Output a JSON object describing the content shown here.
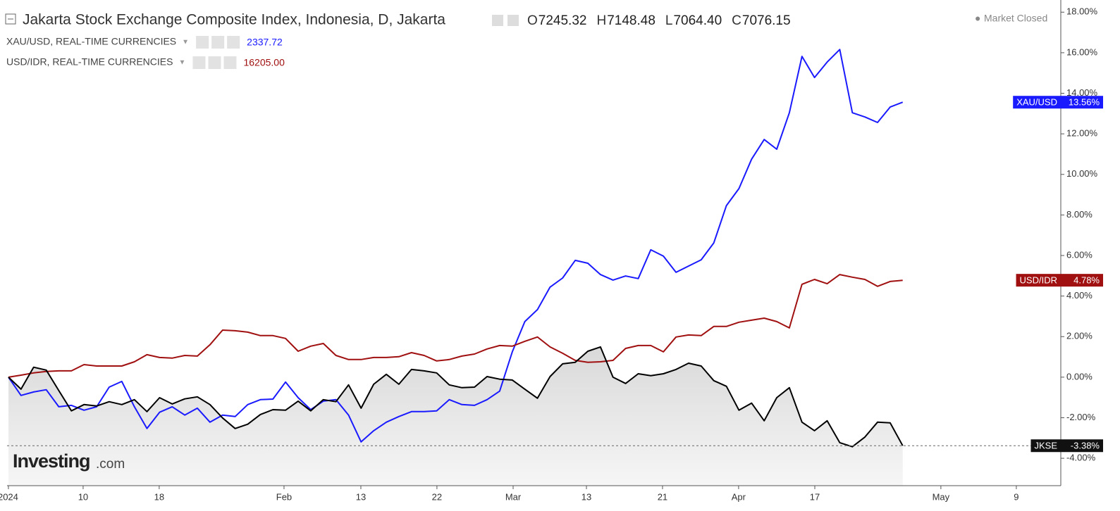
{
  "chart_data": {
    "type": "line",
    "title": "Jakarta Stock Exchange Composite Index, Indonesia, D, Jakarta",
    "ohlc": [
      {
        "label": "O",
        "value": "7245.32"
      },
      {
        "label": "H",
        "value": "7148.48"
      },
      {
        "label": "L",
        "value": "7064.40"
      },
      {
        "label": "C",
        "value": "7076.15"
      }
    ],
    "status": "Market Closed",
    "legend_rows": [
      {
        "name": "XAU/USD, REAL-TIME CURRENCIES",
        "value": "2337.72",
        "color": "#1a1aff"
      },
      {
        "name": "USD/IDR, REAL-TIME CURRENCIES",
        "value": "16205.00",
        "color": "#a01010"
      }
    ],
    "watermark": {
      "brand": "Investing",
      "suffix": ".com"
    },
    "xlim": [
      -0.11,
      83.55
    ],
    "xticks": [
      {
        "value": 0,
        "label": "2024"
      },
      {
        "value": 5.93,
        "label": "10"
      },
      {
        "value": 11.97,
        "label": "18"
      },
      {
        "value": 21.88,
        "label": "Feb"
      },
      {
        "value": 27.98,
        "label": "13"
      },
      {
        "value": 34.02,
        "label": "22"
      },
      {
        "value": 40.07,
        "label": "Mar"
      },
      {
        "value": 45.89,
        "label": "13"
      },
      {
        "value": 51.93,
        "label": "21"
      },
      {
        "value": 57.97,
        "label": "Apr"
      },
      {
        "value": 64.02,
        "label": "17"
      },
      {
        "value": 74.03,
        "label": "May"
      },
      {
        "value": 80.02,
        "label": "9"
      }
    ],
    "ylim": [
      -5.35,
      18.6
    ],
    "yticks": [
      {
        "value": 18,
        "label": "18.00%"
      },
      {
        "value": 16,
        "label": "16.00%"
      },
      {
        "value": 14,
        "label": "14.00%"
      },
      {
        "value": 12,
        "label": "12.00%"
      },
      {
        "value": 10,
        "label": "10.00%"
      },
      {
        "value": 8,
        "label": "8.00%"
      },
      {
        "value": 6,
        "label": "6.00%"
      },
      {
        "value": 4,
        "label": "4.00%"
      },
      {
        "value": 2,
        "label": "2.00%"
      },
      {
        "value": 0,
        "label": "0.00%"
      },
      {
        "value": -2,
        "label": "-2.00%"
      },
      {
        "value": -4,
        "label": "-4.00%"
      }
    ],
    "series": [
      {
        "name": "XAU/USD",
        "color": "#1a1aff",
        "end_label": "13.56%",
        "values": [
          0,
          -0.9,
          -0.73,
          -0.62,
          -1.46,
          -1.39,
          -1.63,
          -1.46,
          -0.49,
          -0.21,
          -1.46,
          -2.53,
          -1.73,
          -1.46,
          -1.87,
          -1.53,
          -2.22,
          -1.87,
          -1.94,
          -1.35,
          -1.11,
          -1.08,
          -0.24,
          -1.01,
          -1.6,
          -1.18,
          -1.11,
          -1.87,
          -3.19,
          -2.64,
          -2.22,
          -1.94,
          -1.7,
          -1.7,
          -1.66,
          -1.11,
          -1.35,
          -1.39,
          -1.11,
          -0.69,
          1.25,
          2.74,
          3.33,
          4.44,
          4.89,
          5.76,
          5.62,
          5.06,
          4.79,
          4.99,
          4.86,
          6.28,
          5.97,
          5.17,
          5.48,
          5.79,
          6.62,
          8.46,
          9.3,
          10.75,
          11.72,
          11.24,
          13.04,
          15.82,
          14.78,
          15.54,
          16.16,
          13.04,
          12.83,
          12.56,
          13.32,
          13.56
        ]
      },
      {
        "name": "USD/IDR",
        "color": "#a01010",
        "end_label": "4.78%",
        "values": [
          0,
          0.1,
          0.21,
          0.28,
          0.31,
          0.31,
          0.62,
          0.55,
          0.55,
          0.55,
          0.76,
          1.11,
          0.97,
          0.94,
          1.07,
          1.04,
          1.6,
          2.32,
          2.29,
          2.22,
          2.05,
          2.05,
          1.91,
          1.28,
          1.53,
          1.66,
          1.07,
          0.87,
          0.87,
          0.97,
          0.97,
          1.01,
          1.21,
          1.07,
          0.8,
          0.87,
          1.04,
          1.14,
          1.39,
          1.56,
          1.53,
          1.77,
          1.98,
          1.49,
          1.18,
          0.83,
          0.73,
          0.76,
          0.83,
          1.42,
          1.56,
          1.56,
          1.25,
          1.98,
          2.08,
          2.05,
          2.5,
          2.5,
          2.71,
          2.81,
          2.91,
          2.74,
          2.43,
          4.58,
          4.82,
          4.61,
          5.06,
          4.93,
          4.82,
          4.48,
          4.72,
          4.78
        ]
      },
      {
        "name": "JKSE",
        "color": "#000000",
        "end_label": "-3.38%",
        "area": true,
        "values": [
          0,
          -0.59,
          0.49,
          0.35,
          -0.66,
          -1.66,
          -1.35,
          -1.42,
          -1.21,
          -1.35,
          -1.11,
          -1.7,
          -1.01,
          -1.32,
          -1.07,
          -0.97,
          -1.35,
          -2.01,
          -2.53,
          -2.32,
          -1.84,
          -1.6,
          -1.63,
          -1.18,
          -1.66,
          -1.11,
          -1.21,
          -0.38,
          -1.53,
          -0.35,
          0.14,
          -0.35,
          0.38,
          0.31,
          0.21,
          -0.38,
          -0.52,
          -0.49,
          0.03,
          -0.1,
          -0.14,
          -0.59,
          -1.04,
          0.03,
          0.66,
          0.73,
          1.28,
          1.49,
          0,
          -0.31,
          0.17,
          0.07,
          0.17,
          0.38,
          0.69,
          0.55,
          -0.17,
          -0.45,
          -1.63,
          -1.28,
          -2.15,
          -1.01,
          -0.52,
          -2.22,
          -2.64,
          -2.15,
          -3.23,
          -3.43,
          -2.95,
          -2.22,
          -2.25,
          -3.38
        ]
      }
    ]
  }
}
